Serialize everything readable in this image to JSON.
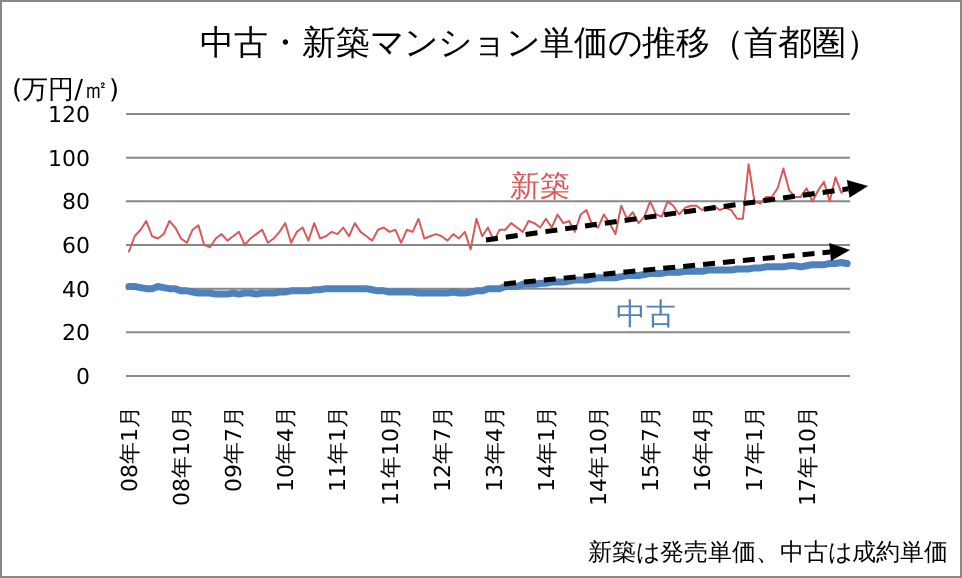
{
  "chart_data": {
    "type": "line",
    "title": "中古・新築マンション単価の推移（首都圏）",
    "ylabel": "(万円/㎡)",
    "annotations": [
      "新築は発売単価、中古は成約単価"
    ],
    "categories": [
      "08年1月",
      null,
      null,
      null,
      null,
      null,
      null,
      null,
      null,
      "08年10月",
      null,
      null,
      null,
      null,
      null,
      null,
      null,
      null,
      "09年7月",
      null,
      null,
      null,
      null,
      null,
      null,
      null,
      null,
      "10年4月",
      null,
      null,
      null,
      null,
      null,
      null,
      null,
      null,
      "11年1月",
      null,
      null,
      null,
      null,
      null,
      null,
      null,
      null,
      "11年10月",
      null,
      null,
      null,
      null,
      null,
      null,
      null,
      null,
      "12年7月",
      null,
      null,
      null,
      null,
      null,
      null,
      null,
      null,
      "13年4月",
      null,
      null,
      null,
      null,
      null,
      null,
      null,
      null,
      "14年1月",
      null,
      null,
      null,
      null,
      null,
      null,
      null,
      null,
      "14年10月",
      null,
      null,
      null,
      null,
      null,
      null,
      null,
      null,
      "15年7月",
      null,
      null,
      null,
      null,
      null,
      null,
      null,
      null,
      "16年4月",
      null,
      null,
      null,
      null,
      null,
      null,
      null,
      null,
      "17年1月",
      null,
      null,
      null,
      null,
      null,
      null,
      null,
      null,
      "17年10月",
      null,
      null,
      null,
      null,
      null,
      null,
      null
    ],
    "series": [
      {
        "name": "新築",
        "color": "#d9595a",
        "values": [
          57,
          64,
          67,
          71,
          64,
          63,
          65,
          71,
          68,
          63,
          61,
          67,
          69,
          60,
          59,
          63,
          65,
          62,
          64,
          66,
          60,
          63,
          65,
          67,
          61,
          63,
          66,
          70,
          61,
          66,
          68,
          62,
          70,
          63,
          64,
          66,
          65,
          68,
          64,
          70,
          66,
          64,
          62,
          67,
          68,
          66,
          67,
          61,
          67,
          66,
          72,
          63,
          64,
          65,
          64,
          62,
          65,
          63,
          66,
          58,
          72,
          64,
          68,
          62,
          67,
          67,
          70,
          68,
          66,
          71,
          70,
          68,
          72,
          68,
          74,
          70,
          71,
          66,
          74,
          76,
          69,
          68,
          74,
          70,
          65,
          78,
          72,
          75,
          70,
          73,
          80,
          74,
          73,
          80,
          78,
          74,
          77,
          78,
          78,
          76,
          77,
          78,
          76,
          77,
          76,
          72,
          72,
          97,
          80,
          79,
          82,
          82,
          86,
          95,
          85,
          82,
          82,
          86,
          80,
          85,
          89,
          80,
          91,
          84,
          86
        ]
      },
      {
        "name": "中古",
        "color": "#4f81bd",
        "values": [
          41,
          41,
          40.5,
          40,
          40,
          41,
          40.5,
          40,
          40,
          39,
          39,
          38.5,
          38,
          38,
          38,
          37.5,
          37.5,
          37.5,
          38,
          37.5,
          38,
          38,
          37.5,
          38,
          38,
          38,
          38.5,
          38.5,
          39,
          39,
          39,
          39,
          39.5,
          39.5,
          40,
          40,
          40,
          40,
          40,
          40,
          40,
          40,
          39.5,
          39,
          39,
          38.5,
          38.5,
          38.5,
          38.5,
          38.5,
          38,
          38,
          38,
          38,
          38,
          38,
          38.5,
          38,
          38,
          38.5,
          39,
          39,
          40,
          40,
          40,
          41,
          41,
          41,
          42,
          42,
          42,
          42.5,
          42.5,
          43,
          43,
          43,
          43.5,
          44,
          44,
          44,
          44.5,
          45,
          45,
          45,
          45,
          45.5,
          46,
          46,
          46,
          46.5,
          47,
          47,
          47,
          47.5,
          47.5,
          47.5,
          48,
          48,
          48,
          48,
          48.5,
          48.5,
          48.5,
          48.5,
          48.5,
          49,
          49,
          49,
          49.5,
          49.5,
          50,
          50,
          50,
          50,
          50.5,
          50.5,
          50,
          50.5,
          51,
          51,
          51,
          51.5,
          51.5,
          52,
          51.5
        ]
      }
    ],
    "ylim": [
      0,
      120
    ],
    "yticks": [
      0,
      20,
      40,
      60,
      80,
      100,
      120
    ],
    "grid": "y"
  }
}
